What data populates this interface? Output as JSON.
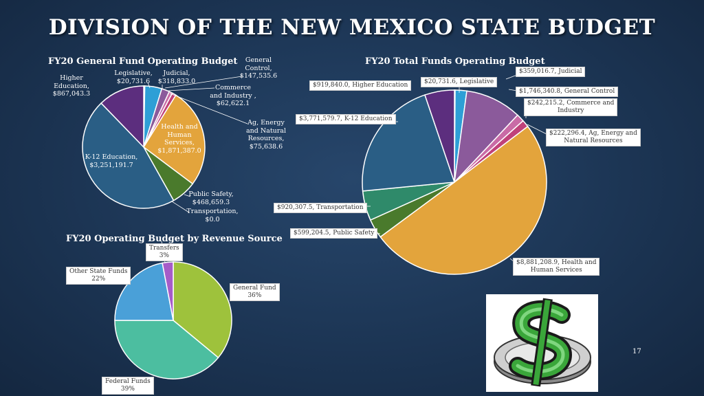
{
  "page": {
    "title": "DIVISION OF THE NEW MEXICO STATE BUDGET",
    "page_number": "17"
  },
  "colors": {
    "legislative": "#3fbf9a",
    "judicial": "#2e9fd6",
    "general_control": "#8b5a9b",
    "commerce_industry": "#c96ba6",
    "ag_energy": "#c0427a",
    "health_human_services": "#e3a43c",
    "public_safety": "#4a7a2c",
    "transportation": "#2f8a6a",
    "k12_education": "#2a5e85",
    "higher_education": "#5c2e7e",
    "general_fund": "#9ec23c",
    "federal_funds": "#4cbea0",
    "other_state_funds": "#4aa0d8",
    "transfers": "#a65cc8"
  },
  "labels": {
    "gf": {
      "higher_education": [
        "Higher",
        "Education,",
        "$867,043.3"
      ],
      "legislative": [
        "Legislative,",
        "$20,731.6"
      ],
      "judicial": [
        "Judicial,",
        "$318,833.0"
      ],
      "general_control": [
        "General",
        "Control,",
        "$147,535.6"
      ],
      "commerce_industry": [
        "Commerce",
        "and Industry ,",
        "$62,622.1"
      ],
      "ag_energy": [
        "Ag, Energy",
        "and Natural",
        "Resources,",
        "$75,638.6"
      ],
      "health": [
        "Health and",
        "Human",
        "Services,",
        "$1,871,387.0"
      ],
      "k12": [
        "K-12 Education,",
        "$3,251,191.7"
      ],
      "public_safety": [
        "Public Safety,",
        "$468,659.3"
      ],
      "transportation": [
        "Transportation,",
        "$0.0"
      ]
    },
    "tf": {
      "judicial": "$359,016.7, Judicial",
      "legislative": "$20,731.6, Legislative",
      "higher_education": "$919,840.0, Higher Education",
      "general_control": "$1,746,340.8, General Control",
      "commerce_industry": [
        "$242,215.2, Commerce and",
        "Industry"
      ],
      "k12": "$3,771,579.7, K-12 Education",
      "ag_energy": [
        "$222,296.4, Ag, Energy and",
        "Natural Resources"
      ],
      "transportation": "$920,307.5, Transportation",
      "public_safety": "$599,204.5, Public Safety",
      "health": [
        "$8,881,208.9, Health and",
        "Human Services"
      ]
    },
    "rev": {
      "transfers": [
        "Transfers",
        "3%"
      ],
      "other_state_funds": [
        "Other State Funds",
        "22%"
      ],
      "general_fund": [
        "General Fund",
        "36%"
      ],
      "federal_funds": [
        "Federal Funds",
        "39%"
      ]
    }
  },
  "chart_data": [
    {
      "type": "pie",
      "title": "FY20 General Fund Operating Budget",
      "categories": [
        "Legislative",
        "Judicial",
        "General Control",
        "Commerce and Industry",
        "Ag, Energy and Natural Resources",
        "Health and Human Services",
        "Public Safety",
        "Transportation",
        "K-12 Education",
        "Higher Education"
      ],
      "values": [
        20731.6,
        318833.0,
        147535.6,
        62622.1,
        75638.6,
        1871387.0,
        468659.3,
        0.0,
        3251191.7,
        867043.3
      ]
    },
    {
      "type": "pie",
      "title": "FY20 Total Funds Operating Budget",
      "categories": [
        "Legislative",
        "Judicial",
        "General Control",
        "Commerce and Industry",
        "Ag, Energy and Natural Resources",
        "Health and Human Services",
        "Public Safety",
        "Transportation",
        "K-12 Education",
        "Higher Education"
      ],
      "values": [
        20731.6,
        359016.7,
        1746340.8,
        242215.2,
        222296.4,
        8881208.9,
        599204.5,
        920307.5,
        3771579.7,
        919840.0
      ]
    },
    {
      "type": "pie",
      "title": "FY20 Operating Budget by Revenue Source",
      "categories": [
        "General Fund",
        "Federal Funds",
        "Other State Funds",
        "Transfers"
      ],
      "values": [
        36,
        39,
        22,
        3
      ]
    }
  ]
}
